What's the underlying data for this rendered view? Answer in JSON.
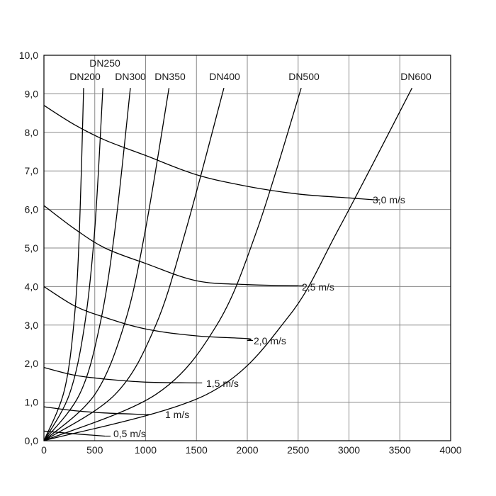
{
  "chart_data": {
    "type": "line",
    "xlim": [
      0,
      4000
    ],
    "ylim": [
      0,
      10
    ],
    "x_ticks": [
      "0",
      "500",
      "1000",
      "1500",
      "2000",
      "2500",
      "3000",
      "3500",
      "4000"
    ],
    "y_ticks": [
      "0,0",
      "1,0",
      "2,0",
      "3,0",
      "4,0",
      "5,0",
      "6,0",
      "7,0",
      "8,0",
      "9,0",
      "10,0"
    ],
    "grid": true,
    "diameter_curves": [
      {
        "name": "DN200",
        "points": [
          [
            0,
            0
          ],
          [
            200,
            1.3
          ],
          [
            300,
            3.2
          ],
          [
            350,
            5.5
          ],
          [
            390,
            9.15
          ]
        ]
      },
      {
        "name": "DN250",
        "points": [
          [
            0,
            0
          ],
          [
            250,
            1.2
          ],
          [
            400,
            3.0
          ],
          [
            500,
            5.5
          ],
          [
            580,
            9.15
          ]
        ]
      },
      {
        "name": "DN300",
        "points": [
          [
            0,
            0
          ],
          [
            350,
            1.2
          ],
          [
            550,
            3.0
          ],
          [
            700,
            5.5
          ],
          [
            850,
            9.15
          ]
        ]
      },
      {
        "name": "DN350",
        "points": [
          [
            0,
            0
          ],
          [
            500,
            1.2
          ],
          [
            800,
            3.1
          ],
          [
            1000,
            5.5
          ],
          [
            1230,
            9.15
          ]
        ]
      },
      {
        "name": "DN400",
        "points": [
          [
            0,
            0
          ],
          [
            700,
            1.2
          ],
          [
            1100,
            3.0
          ],
          [
            1400,
            5.5
          ],
          [
            1770,
            9.15
          ]
        ]
      },
      {
        "name": "DN500",
        "points": [
          [
            0,
            0
          ],
          [
            1100,
            1.2
          ],
          [
            1700,
            3.0
          ],
          [
            2100,
            5.5
          ],
          [
            2530,
            9.15
          ]
        ]
      },
      {
        "name": "DN600",
        "points": [
          [
            0,
            0
          ],
          [
            1600,
            1.2
          ],
          [
            2400,
            3.2
          ],
          [
            2900,
            5.5
          ],
          [
            3620,
            9.15
          ]
        ]
      }
    ],
    "velocity_curves": [
      {
        "name": "3,0 m/s",
        "points": [
          [
            0,
            8.7
          ],
          [
            300,
            8.2
          ],
          [
            600,
            7.8
          ],
          [
            1000,
            7.4
          ],
          [
            1500,
            6.9
          ],
          [
            2000,
            6.6
          ],
          [
            2500,
            6.4
          ],
          [
            3000,
            6.3
          ],
          [
            3250,
            6.25
          ]
        ]
      },
      {
        "name": "2,5 m/s",
        "points": [
          [
            0,
            6.1
          ],
          [
            300,
            5.5
          ],
          [
            600,
            5.0
          ],
          [
            1000,
            4.6
          ],
          [
            1500,
            4.15
          ],
          [
            2000,
            4.05
          ],
          [
            2500,
            4.02
          ]
        ]
      },
      {
        "name": "2,0 m/s",
        "points": [
          [
            0,
            4.0
          ],
          [
            300,
            3.5
          ],
          [
            600,
            3.2
          ],
          [
            1000,
            2.9
          ],
          [
            1500,
            2.72
          ],
          [
            2000,
            2.65
          ],
          [
            2000,
            2.6
          ]
        ]
      },
      {
        "name": "1,5 m/s",
        "points": [
          [
            0,
            1.9
          ],
          [
            300,
            1.7
          ],
          [
            600,
            1.6
          ],
          [
            1000,
            1.52
          ],
          [
            1500,
            1.5
          ]
        ]
      },
      {
        "name": "1 m/s",
        "points": [
          [
            0,
            0.88
          ],
          [
            300,
            0.78
          ],
          [
            600,
            0.72
          ],
          [
            1000,
            0.68
          ]
        ]
      },
      {
        "name": "0,5 m/s",
        "points": [
          [
            0,
            0.25
          ],
          [
            300,
            0.18
          ],
          [
            600,
            0.12
          ]
        ]
      }
    ]
  },
  "labels": {
    "DN200": "DN200",
    "DN250": "DN250",
    "DN300": "DN300",
    "DN350": "DN350",
    "DN400": "DN400",
    "DN500": "DN500",
    "DN600": "DN600",
    "v30": "3,0 m/s",
    "v25": "2,5 m/s",
    "v20": "2,0 m/s",
    "v15": "1,5 m/s",
    "v10": "1 m/s",
    "v05": "0,5 m/s"
  }
}
